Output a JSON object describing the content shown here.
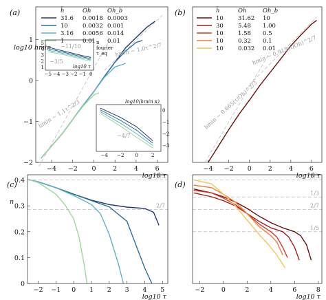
{
  "chart_data": [
    {
      "panel": "(a)",
      "type": "line",
      "xlabel": "log10 τ",
      "ylabel": "log10 hmin",
      "xlim": [
        -5.5,
        7
      ],
      "ylim": [
        -2,
        1.8
      ],
      "xticks": [
        -4,
        -2,
        0,
        2,
        4,
        6
      ],
      "yticks": [
        -2,
        -1,
        0,
        1
      ],
      "legend": {
        "headers": [
          "h̄",
          "Oh",
          "Oh_b"
        ],
        "rows": [
          [
            "31.6",
            "0.0018",
            "0.0003"
          ],
          [
            "10",
            "0.0032",
            "0.001"
          ],
          [
            "3.16",
            "0.0056",
            "0.014"
          ],
          [
            "1",
            "0.01",
            "0.01"
          ]
        ]
      },
      "series": [
        {
          "color": "#1f3a6e",
          "x": [
            -5,
            -4,
            -3,
            -2,
            -1,
            0,
            1,
            2,
            3,
            4,
            5,
            5.8
          ],
          "y": [
            -1.9,
            -1.6,
            -1.3,
            -0.95,
            -0.6,
            -0.27,
            0.1,
            0.45,
            0.8,
            1.05,
            1.3,
            1.45
          ]
        },
        {
          "color": "#2e6fa0",
          "x": [
            -5,
            -4,
            -3,
            -2,
            -1,
            0,
            1,
            2,
            3,
            4,
            4.6
          ],
          "y": [
            -1.9,
            -1.6,
            -1.3,
            -0.95,
            -0.6,
            -0.27,
            0.1,
            0.45,
            0.72,
            0.93,
            0.98
          ]
        },
        {
          "color": "#5eb3c4",
          "x": [
            -5,
            -4,
            -3,
            -2,
            -1,
            0,
            1,
            2,
            3
          ],
          "y": [
            -1.9,
            -1.6,
            -1.3,
            -0.95,
            -0.6,
            -0.27,
            0.08,
            0.33,
            0.42
          ]
        },
        {
          "color": "#9ed79a",
          "x": [
            -5,
            -4,
            -3,
            -2,
            -1,
            0,
            0.5
          ],
          "y": [
            -1.9,
            -1.6,
            -1.3,
            -0.95,
            -0.62,
            -0.35,
            -0.3
          ]
        }
      ],
      "annotations": [
        "hmin ∼ 1.1τ^2/3",
        "hmin ∼ 1.0τ^2/7"
      ],
      "inset_top": {
        "ylabel_parts": [
          "n",
          "fourier",
          "τ_eq"
        ],
        "xlabel": "log10 τ",
        "xticks": [
          -5,
          -4,
          -3,
          -2,
          -1,
          0
        ],
        "yticks": [
          1,
          2,
          3,
          4,
          5
        ],
        "annotations": [
          "−11/10",
          "−3/5"
        ]
      },
      "inset_bottom": {
        "ylabel": "log10(hmin κ)",
        "xlabel": "log10 τ",
        "xticks": [
          -4,
          -2,
          0,
          2
        ],
        "yticks": [
          -3,
          -2,
          -1,
          0
        ],
        "annotations": [
          "−4/7"
        ]
      }
    },
    {
      "panel": "(b)",
      "type": "line",
      "xlabel": "log10 τ",
      "xlim": [
        -5.5,
        7
      ],
      "ylim": [
        -2,
        1.8
      ],
      "xticks": [
        -4,
        -2,
        0,
        2,
        4,
        6
      ],
      "legend": {
        "headers": [
          "h̄",
          "Oh",
          "Oh_b"
        ],
        "rows": [
          [
            "10",
            "31.62",
            "10"
          ],
          [
            "30",
            "5.48",
            "1.00"
          ],
          [
            "10",
            "1.58",
            "0.5"
          ],
          [
            "10",
            "0.32",
            "0.1"
          ],
          [
            "10",
            "0.032",
            "0.01"
          ]
        ]
      },
      "series": [
        {
          "color": "#6b0f0f",
          "x": [
            -4,
            -3,
            -2,
            -1,
            0,
            1,
            2,
            3,
            4,
            5,
            6,
            6.5
          ],
          "y": [
            -2.0,
            -1.6,
            -1.2,
            -0.82,
            -0.48,
            -0.12,
            0.2,
            0.52,
            0.85,
            1.12,
            1.38,
            1.47
          ]
        }
      ],
      "annotations": [
        "hmin ∼ 0.665(τ/Oh)^2/3",
        "hmin ∼ 0.913(τ/Oh)^2/7"
      ]
    },
    {
      "panel": "(c)",
      "type": "line",
      "xlabel": "log10 τ",
      "ylabel": "n",
      "xlim": [
        -2.6,
        5.3
      ],
      "ylim": [
        0.0,
        0.42
      ],
      "xticks": [
        -2,
        -1,
        0,
        1,
        2,
        3,
        4,
        5
      ],
      "yticks": [
        0.0,
        0.1,
        0.2,
        0.3,
        0.4
      ],
      "reference_lines": [
        {
          "value": 0.4,
          "label": "2/5"
        },
        {
          "value": 0.2857,
          "label": "2/7"
        }
      ],
      "series": [
        {
          "color": "#1f3a6e",
          "x": [
            -2.5,
            -2,
            -1,
            0,
            1,
            2,
            3,
            4,
            4.5,
            4.8
          ],
          "y": [
            0.4,
            0.393,
            0.37,
            0.345,
            0.322,
            0.305,
            0.295,
            0.29,
            0.275,
            0.225
          ]
        },
        {
          "color": "#2e6fa0",
          "x": [
            -2.5,
            -2,
            -1,
            0,
            1,
            2,
            3,
            3.5,
            4,
            4.4
          ],
          "y": [
            0.4,
            0.393,
            0.37,
            0.345,
            0.32,
            0.296,
            0.24,
            0.15,
            0.06,
            0.0
          ]
        },
        {
          "color": "#5eb3c4",
          "x": [
            -2.5,
            -2,
            -1,
            0,
            1,
            1.5,
            2,
            2.5,
            2.8
          ],
          "y": [
            0.4,
            0.393,
            0.37,
            0.34,
            0.305,
            0.27,
            0.19,
            0.08,
            0.0
          ]
        },
        {
          "color": "#9ed79a",
          "x": [
            -2.5,
            -2,
            -1,
            -0.5,
            0,
            0.3,
            0.6,
            0.75
          ],
          "y": [
            0.4,
            0.39,
            0.345,
            0.305,
            0.25,
            0.18,
            0.07,
            0.0
          ]
        }
      ]
    },
    {
      "panel": "(d)",
      "type": "line",
      "xlabel": "log10 τ",
      "xlim": [
        -2.6,
        8.3
      ],
      "ylim": [
        0.0,
        0.42
      ],
      "xticks": [
        -2,
        0,
        2,
        4,
        6,
        8
      ],
      "reference_lines": [
        {
          "value": 0.4,
          "label": "2/5"
        },
        {
          "value": 0.3333,
          "label": "1/3"
        },
        {
          "value": 0.2857,
          "label": "2/7"
        },
        {
          "value": 0.2,
          "label": "1/5"
        }
      ],
      "series": [
        {
          "color": "#6b0f0f",
          "x": [
            -2.5,
            -1,
            0,
            1,
            2,
            3,
            4,
            5,
            6,
            6.5,
            7,
            7.4
          ],
          "y": [
            0.365,
            0.35,
            0.335,
            0.315,
            0.29,
            0.26,
            0.235,
            0.215,
            0.2,
            0.185,
            0.15,
            0.09
          ]
        },
        {
          "color": "#a51c1c",
          "x": [
            -2.5,
            -1,
            0,
            1,
            2,
            3,
            4,
            5,
            5.5,
            6,
            6.4
          ],
          "y": [
            0.35,
            0.335,
            0.32,
            0.3,
            0.27,
            0.24,
            0.215,
            0.2,
            0.18,
            0.14,
            0.09
          ]
        },
        {
          "color": "#d9382a",
          "x": [
            -2.5,
            -1,
            0,
            1,
            2,
            3,
            4,
            4.5,
            5,
            5.4
          ],
          "y": [
            0.36,
            0.35,
            0.33,
            0.305,
            0.27,
            0.23,
            0.2,
            0.18,
            0.14,
            0.1
          ]
        },
        {
          "color": "#ef7e3c",
          "x": [
            -2.5,
            -1,
            0,
            1,
            2,
            3,
            4,
            4.5,
            5
          ],
          "y": [
            0.38,
            0.37,
            0.345,
            0.315,
            0.27,
            0.22,
            0.185,
            0.16,
            0.11
          ]
        },
        {
          "color": "#f6c45a",
          "x": [
            -2.5,
            -1,
            0,
            1,
            2,
            3,
            3.8,
            4.5,
            5.2
          ],
          "y": [
            0.4,
            0.385,
            0.345,
            0.3,
            0.245,
            0.19,
            0.15,
            0.11,
            0.06
          ]
        }
      ]
    }
  ]
}
